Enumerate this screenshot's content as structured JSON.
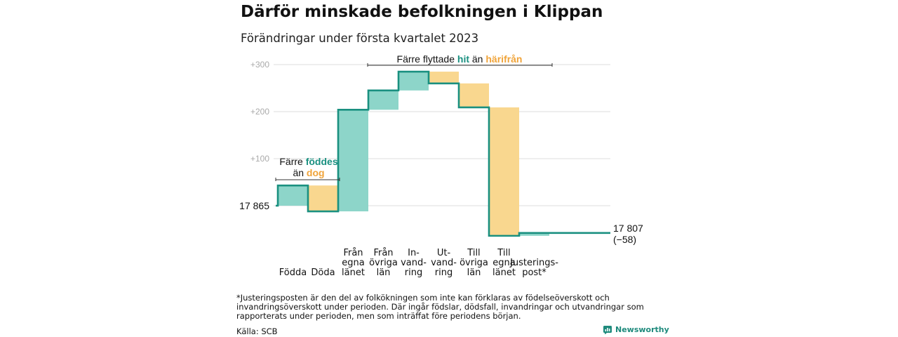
{
  "title": "Därför minskade befolkningen i Klippan",
  "subtitle": "Förändringar under första kvartalet 2023",
  "footnote": "*Justeringsposten är den del av folkökningen som inte kan förklaras av födelseöverskott och invandringsöverskott under perioden. Där ingår födslar, dödsfall, invandringar och utvandringar som rapporterats under perioden, men som inträffat före periodens början.",
  "source": "Källa: SCB",
  "brand": "Newsworthy",
  "colors": {
    "line": "#1a9080",
    "increase": "#8dd5c9",
    "decrease": "#f9d78f",
    "hit": "#1a9080",
    "harifran": "#f0a43a",
    "grid": "#dddddd",
    "tick": "#aaaaaa"
  },
  "annotations": {
    "births": {
      "line1_pre": "Färre ",
      "line1_hl": "föddes",
      "line2_pre": "än ",
      "line2_hl": "dog"
    },
    "migration": {
      "pre": "Färre flyttade ",
      "hl1": "hit",
      "mid": " än ",
      "hl2": "härifrån"
    }
  },
  "chart_data": {
    "type": "waterfall",
    "start_label": "17 865",
    "end_label_line1": "17 807",
    "end_label_line2": "(−58)",
    "start_value": 17865,
    "end_value": 17807,
    "y_ticks": [
      "+100",
      "+200",
      "+300"
    ],
    "ylim": [
      -60,
      300
    ],
    "items": [
      {
        "label": [
          "Födda"
        ],
        "label_row": "bottom",
        "start": 0,
        "end": 43
      },
      {
        "label": [
          "Döda"
        ],
        "label_row": "bottom",
        "start": 43,
        "end": -12
      },
      {
        "label": [
          "Från",
          "egna",
          "länet"
        ],
        "label_row": "top",
        "start": -12,
        "end": 204
      },
      {
        "label": [
          "Från",
          "övriga",
          "län"
        ],
        "label_row": "top",
        "start": 204,
        "end": 245
      },
      {
        "label": [
          "In-",
          "vand-",
          "ring"
        ],
        "label_row": "top",
        "start": 245,
        "end": 285
      },
      {
        "label": [
          "Ut-",
          "vand-",
          "ring"
        ],
        "label_row": "top",
        "start": 285,
        "end": 260
      },
      {
        "label": [
          "Till",
          "övriga",
          "län"
        ],
        "label_row": "top",
        "start": 260,
        "end": 209
      },
      {
        "label": [
          "Till",
          "egna",
          "länet"
        ],
        "label_row": "top",
        "start": 209,
        "end": -64
      },
      {
        "label": [
          "Justerings-",
          "post*"
        ],
        "label_row": "bottom",
        "start": -64,
        "end": -58
      }
    ]
  }
}
